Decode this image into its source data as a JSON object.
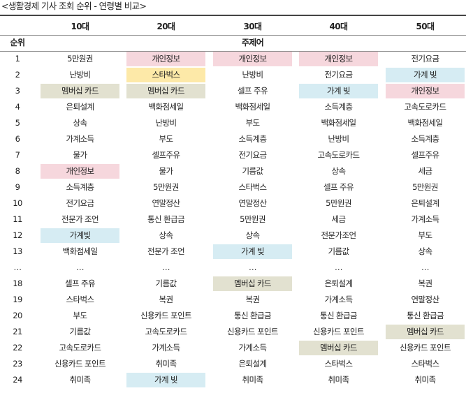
{
  "caption": "<생활경제 기사 조회 순위 - 연령별 비교>",
  "headers": {
    "rank": "순위",
    "ages": [
      "10대",
      "20대",
      "30대",
      "40대",
      "50대"
    ],
    "subheader": "주제어"
  },
  "colors": {
    "pink": "#f6d7dd",
    "yellow": "#fde9a8",
    "khaki": "#e2e1d0",
    "blue": "#d6ecf3"
  },
  "rows": [
    {
      "rank": "1",
      "cells": [
        {
          "t": "5만원권",
          "c": ""
        },
        {
          "t": "개인정보",
          "c": "pink"
        },
        {
          "t": "개인정보",
          "c": "pink"
        },
        {
          "t": "개인정보",
          "c": "pink"
        },
        {
          "t": "전기요금",
          "c": ""
        }
      ]
    },
    {
      "rank": "2",
      "cells": [
        {
          "t": "난방비",
          "c": ""
        },
        {
          "t": "스타벅스",
          "c": "yellow"
        },
        {
          "t": "난방비",
          "c": ""
        },
        {
          "t": "전기요금",
          "c": ""
        },
        {
          "t": "가계 빚",
          "c": "blue"
        }
      ]
    },
    {
      "rank": "3",
      "cells": [
        {
          "t": "멤버십 카드",
          "c": "khaki"
        },
        {
          "t": "멤버십 카드",
          "c": "khaki"
        },
        {
          "t": "셀프 주유",
          "c": ""
        },
        {
          "t": "가계 빚",
          "c": "blue"
        },
        {
          "t": "개인정보",
          "c": "pink"
        }
      ]
    },
    {
      "rank": "4",
      "cells": [
        {
          "t": "은퇴설계",
          "c": ""
        },
        {
          "t": "백화점세일",
          "c": ""
        },
        {
          "t": "백화점세일",
          "c": ""
        },
        {
          "t": "소득계층",
          "c": ""
        },
        {
          "t": "고속도로카드",
          "c": ""
        }
      ]
    },
    {
      "rank": "5",
      "cells": [
        {
          "t": "상속",
          "c": ""
        },
        {
          "t": "난방비",
          "c": ""
        },
        {
          "t": "부도",
          "c": ""
        },
        {
          "t": "백화점세일",
          "c": ""
        },
        {
          "t": "백화점세일",
          "c": ""
        }
      ]
    },
    {
      "rank": "6",
      "cells": [
        {
          "t": "가계소득",
          "c": ""
        },
        {
          "t": "부도",
          "c": ""
        },
        {
          "t": "소득계층",
          "c": ""
        },
        {
          "t": "난방비",
          "c": ""
        },
        {
          "t": "소득계층",
          "c": ""
        }
      ]
    },
    {
      "rank": "7",
      "cells": [
        {
          "t": "물가",
          "c": ""
        },
        {
          "t": "셀프주유",
          "c": ""
        },
        {
          "t": "전기요금",
          "c": ""
        },
        {
          "t": "고속도로카드",
          "c": ""
        },
        {
          "t": "셀프주유",
          "c": ""
        }
      ]
    },
    {
      "rank": "8",
      "cells": [
        {
          "t": "개인정보",
          "c": "pink"
        },
        {
          "t": "물가",
          "c": ""
        },
        {
          "t": "기름값",
          "c": ""
        },
        {
          "t": "상속",
          "c": ""
        },
        {
          "t": "세금",
          "c": ""
        }
      ]
    },
    {
      "rank": "9",
      "cells": [
        {
          "t": "소득계층",
          "c": ""
        },
        {
          "t": "5만원권",
          "c": ""
        },
        {
          "t": "스타벅스",
          "c": ""
        },
        {
          "t": "셀프 주유",
          "c": ""
        },
        {
          "t": "5만원권",
          "c": ""
        }
      ]
    },
    {
      "rank": "10",
      "cells": [
        {
          "t": "전기요금",
          "c": ""
        },
        {
          "t": "연말정산",
          "c": ""
        },
        {
          "t": "연말정산",
          "c": ""
        },
        {
          "t": "5만원권",
          "c": ""
        },
        {
          "t": "은퇴설계",
          "c": ""
        }
      ]
    },
    {
      "rank": "11",
      "cells": [
        {
          "t": "전문가 조언",
          "c": ""
        },
        {
          "t": "통신 환급금",
          "c": ""
        },
        {
          "t": "5만원권",
          "c": ""
        },
        {
          "t": "세금",
          "c": ""
        },
        {
          "t": "가계소득",
          "c": ""
        }
      ]
    },
    {
      "rank": "12",
      "cells": [
        {
          "t": "가계빚",
          "c": "blue"
        },
        {
          "t": "상속",
          "c": ""
        },
        {
          "t": "상속",
          "c": ""
        },
        {
          "t": "전문가조언",
          "c": ""
        },
        {
          "t": "부도",
          "c": ""
        }
      ]
    },
    {
      "rank": "13",
      "cells": [
        {
          "t": "백화점세일",
          "c": ""
        },
        {
          "t": "전문가 조언",
          "c": ""
        },
        {
          "t": "가계 빚",
          "c": "blue"
        },
        {
          "t": "기름값",
          "c": ""
        },
        {
          "t": "상속",
          "c": ""
        }
      ]
    },
    {
      "rank": "…",
      "cells": [
        {
          "t": "…",
          "c": ""
        },
        {
          "t": "…",
          "c": ""
        },
        {
          "t": "…",
          "c": ""
        },
        {
          "t": "…",
          "c": ""
        },
        {
          "t": "…",
          "c": ""
        }
      ]
    },
    {
      "rank": "18",
      "cells": [
        {
          "t": "셀프 주유",
          "c": ""
        },
        {
          "t": "기름값",
          "c": ""
        },
        {
          "t": "멤버십 카드",
          "c": "khaki"
        },
        {
          "t": "은퇴설계",
          "c": ""
        },
        {
          "t": "복권",
          "c": ""
        }
      ]
    },
    {
      "rank": "19",
      "cells": [
        {
          "t": "스타벅스",
          "c": ""
        },
        {
          "t": "복권",
          "c": ""
        },
        {
          "t": "복권",
          "c": ""
        },
        {
          "t": "가계소득",
          "c": ""
        },
        {
          "t": "연말정산",
          "c": ""
        }
      ]
    },
    {
      "rank": "20",
      "cells": [
        {
          "t": "부도",
          "c": ""
        },
        {
          "t": "신용카드 포인트",
          "c": ""
        },
        {
          "t": "통신 환급금",
          "c": ""
        },
        {
          "t": "통신 환급금",
          "c": ""
        },
        {
          "t": "통신 환급금",
          "c": ""
        }
      ]
    },
    {
      "rank": "21",
      "cells": [
        {
          "t": "기름값",
          "c": ""
        },
        {
          "t": "고속도로카드",
          "c": ""
        },
        {
          "t": "신용카드 포인트",
          "c": ""
        },
        {
          "t": "신용카드 포인트",
          "c": ""
        },
        {
          "t": "멤버십 카드",
          "c": "khaki"
        }
      ]
    },
    {
      "rank": "22",
      "cells": [
        {
          "t": "고속도로카드",
          "c": ""
        },
        {
          "t": "가계소득",
          "c": ""
        },
        {
          "t": "가계소득",
          "c": ""
        },
        {
          "t": "멤버십 카드",
          "c": "khaki"
        },
        {
          "t": "신용카드 포인트",
          "c": ""
        }
      ]
    },
    {
      "rank": "23",
      "cells": [
        {
          "t": "신용카드 포인트",
          "c": ""
        },
        {
          "t": "취미족",
          "c": ""
        },
        {
          "t": "은퇴설계",
          "c": ""
        },
        {
          "t": "스타벅스",
          "c": ""
        },
        {
          "t": "스타벅스",
          "c": ""
        }
      ]
    },
    {
      "rank": "24",
      "cells": [
        {
          "t": "취미족",
          "c": ""
        },
        {
          "t": "가계 빚",
          "c": "blue"
        },
        {
          "t": "취미족",
          "c": ""
        },
        {
          "t": "취미족",
          "c": ""
        },
        {
          "t": "취미족",
          "c": ""
        }
      ]
    }
  ]
}
